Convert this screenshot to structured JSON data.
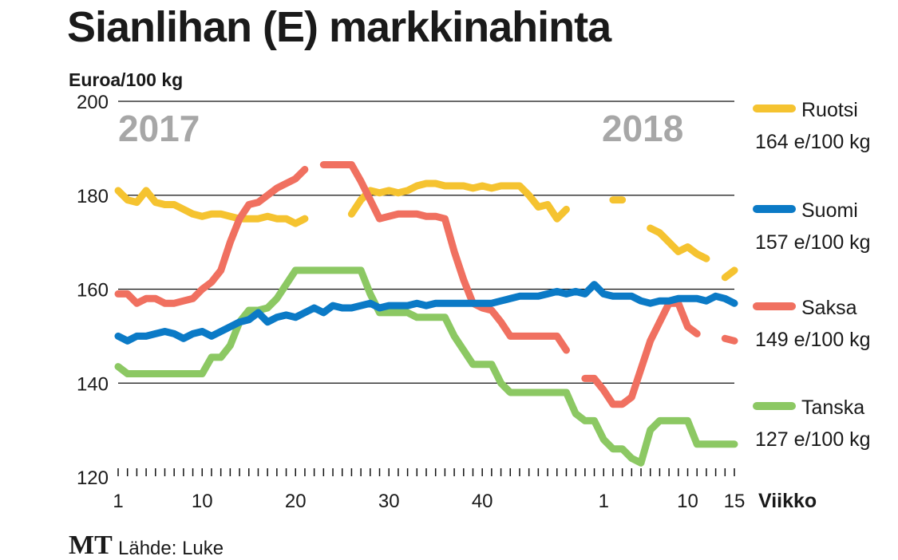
{
  "chart_data": {
    "type": "line",
    "title": "Sianlihan (E) markkinahinta",
    "ylabel": "Euroa/100 kg",
    "xlabel": "Viikko",
    "ylim": [
      120,
      200
    ],
    "yticks": [
      120,
      140,
      160,
      180,
      200
    ],
    "grid": true,
    "legend_placement": "right",
    "year_labels": [
      "2017",
      "2018"
    ],
    "x_index_range": [
      1,
      67
    ],
    "x_ticks": [
      {
        "index": 1,
        "label": "1"
      },
      {
        "index": 10,
        "label": "10"
      },
      {
        "index": 20,
        "label": "20"
      },
      {
        "index": 30,
        "label": "30"
      },
      {
        "index": 40,
        "label": "40"
      },
      {
        "index": 53,
        "label": "1"
      },
      {
        "index": 62,
        "label": "10"
      },
      {
        "index": 67,
        "label": "15"
      }
    ],
    "series": [
      {
        "name": "Ruotsi",
        "current": "164 e/100 kg",
        "color": "#f5c330",
        "points": [
          [
            1,
            181
          ],
          [
            2,
            179
          ],
          [
            3,
            178.5
          ],
          [
            4,
            181
          ],
          [
            5,
            178.5
          ],
          [
            6,
            178
          ],
          [
            7,
            178
          ],
          [
            8,
            177
          ],
          [
            9,
            176
          ],
          [
            10,
            175.5
          ],
          [
            11,
            176
          ],
          [
            12,
            176
          ],
          [
            13,
            175.5
          ],
          [
            14,
            175
          ],
          [
            15,
            175
          ],
          [
            16,
            175
          ],
          [
            17,
            175.5
          ],
          [
            18,
            175
          ],
          [
            19,
            175
          ],
          [
            20,
            174
          ],
          [
            21,
            175
          ],
          null,
          [
            26,
            176
          ],
          [
            27,
            179
          ],
          [
            28,
            181
          ],
          [
            29,
            180.5
          ],
          [
            30,
            181
          ],
          [
            31,
            180.5
          ],
          [
            32,
            181
          ],
          [
            33,
            182
          ],
          [
            34,
            182.5
          ],
          [
            35,
            182.5
          ],
          [
            36,
            182
          ],
          [
            37,
            182
          ],
          [
            38,
            182
          ],
          [
            39,
            181.5
          ],
          [
            40,
            182
          ],
          [
            41,
            181.5
          ],
          [
            42,
            182
          ],
          [
            43,
            182
          ],
          [
            44,
            182
          ],
          [
            45,
            180
          ],
          [
            46,
            177.5
          ],
          [
            47,
            178
          ],
          [
            48,
            175
          ],
          [
            49,
            177
          ],
          null,
          [
            54,
            179
          ],
          [
            55,
            179
          ],
          null,
          [
            58,
            173
          ],
          [
            59,
            172
          ],
          [
            60,
            170
          ],
          [
            61,
            168
          ],
          [
            62,
            169
          ],
          [
            63,
            167.5
          ],
          [
            64,
            166.5
          ],
          null,
          [
            66,
            162.5
          ],
          [
            67,
            164
          ]
        ]
      },
      {
        "name": "Suomi",
        "current": "157 e/100 kg",
        "color": "#0b7ac6",
        "points": [
          [
            1,
            150
          ],
          [
            2,
            149
          ],
          [
            3,
            150
          ],
          [
            4,
            150
          ],
          [
            5,
            150.5
          ],
          [
            6,
            151
          ],
          [
            7,
            150.5
          ],
          [
            8,
            149.5
          ],
          [
            9,
            150.5
          ],
          [
            10,
            151
          ],
          [
            11,
            150
          ],
          [
            12,
            151
          ],
          [
            13,
            152
          ],
          [
            14,
            153
          ],
          [
            15,
            153.5
          ],
          [
            16,
            155
          ],
          [
            17,
            153
          ],
          [
            18,
            154
          ],
          [
            19,
            154.5
          ],
          [
            20,
            154
          ],
          [
            21,
            155
          ],
          [
            22,
            156
          ],
          [
            23,
            155
          ],
          [
            24,
            156.5
          ],
          [
            25,
            156
          ],
          [
            26,
            156
          ],
          [
            27,
            156.5
          ],
          [
            28,
            157
          ],
          [
            29,
            156
          ],
          [
            30,
            156.5
          ],
          [
            31,
            156.5
          ],
          [
            32,
            156.5
          ],
          [
            33,
            157
          ],
          [
            34,
            156.5
          ],
          [
            35,
            157
          ],
          [
            36,
            157
          ],
          [
            37,
            157
          ],
          [
            38,
            157
          ],
          [
            39,
            157
          ],
          [
            40,
            157
          ],
          [
            41,
            157
          ],
          [
            42,
            157.5
          ],
          [
            43,
            158
          ],
          [
            44,
            158.5
          ],
          [
            45,
            158.5
          ],
          [
            46,
            158.5
          ],
          [
            47,
            159
          ],
          [
            48,
            159.5
          ],
          [
            49,
            159
          ],
          [
            50,
            159.5
          ],
          [
            51,
            159
          ],
          [
            52,
            161
          ],
          [
            53,
            159
          ],
          [
            54,
            158.5
          ],
          [
            55,
            158.5
          ],
          [
            56,
            158.5
          ],
          [
            57,
            157.5
          ],
          [
            58,
            157
          ],
          [
            59,
            157.5
          ],
          [
            60,
            157.5
          ],
          [
            61,
            158
          ],
          [
            62,
            158
          ],
          [
            63,
            158
          ],
          [
            64,
            157.5
          ],
          [
            65,
            158.5
          ],
          [
            66,
            158
          ],
          [
            67,
            157
          ]
        ]
      },
      {
        "name": "Saksa",
        "current": "149 e/100 kg",
        "color": "#f07060",
        "points": [
          [
            1,
            159
          ],
          [
            2,
            159
          ],
          [
            3,
            157
          ],
          [
            4,
            158
          ],
          [
            5,
            158
          ],
          [
            6,
            157
          ],
          [
            7,
            157
          ],
          [
            8,
            157.5
          ],
          [
            9,
            158
          ],
          [
            10,
            160
          ],
          [
            11,
            161.5
          ],
          [
            12,
            164
          ],
          [
            13,
            170
          ],
          [
            14,
            175
          ],
          [
            15,
            178
          ],
          [
            16,
            178.5
          ],
          [
            17,
            180
          ],
          [
            18,
            181.5
          ],
          [
            19,
            182.5
          ],
          [
            20,
            183.5
          ],
          [
            21,
            185.5
          ],
          null,
          [
            23,
            186.5
          ],
          [
            24,
            186.5
          ],
          [
            25,
            186.5
          ],
          [
            26,
            186.5
          ],
          [
            27,
            183
          ],
          [
            28,
            179
          ],
          [
            29,
            175
          ],
          [
            30,
            175.5
          ],
          [
            31,
            176
          ],
          [
            32,
            176
          ],
          [
            33,
            176
          ],
          [
            34,
            175.5
          ],
          [
            35,
            175.5
          ],
          [
            36,
            175
          ],
          [
            37,
            168
          ],
          [
            38,
            162
          ],
          [
            39,
            157
          ],
          [
            40,
            156
          ],
          [
            41,
            155.5
          ],
          [
            42,
            153
          ],
          [
            43,
            150
          ],
          [
            44,
            150
          ],
          [
            45,
            150
          ],
          [
            46,
            150
          ],
          [
            47,
            150
          ],
          [
            48,
            150
          ],
          [
            49,
            147
          ],
          null,
          [
            51,
            141
          ],
          [
            52,
            141
          ],
          [
            53,
            138.5
          ],
          [
            54,
            135.5
          ],
          [
            55,
            135.5
          ],
          [
            56,
            137
          ],
          [
            57,
            143
          ],
          [
            58,
            149
          ],
          [
            59,
            153
          ],
          [
            60,
            157
          ],
          [
            61,
            157
          ],
          [
            62,
            152
          ],
          [
            63,
            150.5
          ],
          null,
          [
            66,
            149.5
          ],
          [
            67,
            149
          ]
        ]
      },
      {
        "name": "Tanska",
        "current": "127 e/100 kg",
        "color": "#8cc863",
        "points": [
          [
            1,
            143.5
          ],
          [
            2,
            142
          ],
          [
            3,
            142
          ],
          [
            4,
            142
          ],
          [
            5,
            142
          ],
          [
            6,
            142
          ],
          [
            7,
            142
          ],
          [
            8,
            142
          ],
          [
            9,
            142
          ],
          [
            10,
            142
          ],
          [
            11,
            145.5
          ],
          [
            12,
            145.5
          ],
          [
            13,
            148
          ],
          [
            14,
            153
          ],
          [
            15,
            155.5
          ],
          [
            16,
            155.5
          ],
          [
            17,
            156
          ],
          [
            18,
            158
          ],
          [
            19,
            161
          ],
          [
            20,
            164
          ],
          [
            21,
            164
          ],
          [
            22,
            164
          ],
          [
            23,
            164
          ],
          [
            24,
            164
          ],
          [
            25,
            164
          ],
          [
            26,
            164
          ],
          [
            27,
            164
          ],
          [
            28,
            159
          ],
          [
            29,
            155
          ],
          [
            30,
            155
          ],
          [
            31,
            155
          ],
          [
            32,
            155
          ],
          [
            33,
            154
          ],
          [
            34,
            154
          ],
          [
            35,
            154
          ],
          [
            36,
            154
          ],
          [
            37,
            150
          ],
          [
            38,
            147
          ],
          [
            39,
            144
          ],
          [
            40,
            144
          ],
          [
            41,
            144
          ],
          [
            42,
            140
          ],
          [
            43,
            138
          ],
          [
            44,
            138
          ],
          [
            45,
            138
          ],
          [
            46,
            138
          ],
          [
            47,
            138
          ],
          [
            48,
            138
          ],
          [
            49,
            138
          ],
          [
            50,
            133.5
          ],
          [
            51,
            132
          ],
          [
            52,
            132
          ],
          [
            53,
            128
          ],
          [
            54,
            126
          ],
          [
            55,
            126
          ],
          [
            56,
            124
          ],
          [
            57,
            123
          ],
          [
            58,
            130
          ],
          [
            59,
            132
          ],
          [
            60,
            132
          ],
          [
            61,
            132
          ],
          [
            62,
            132
          ],
          [
            63,
            127
          ],
          [
            64,
            127
          ],
          [
            65,
            127
          ],
          [
            66,
            127
          ],
          [
            67,
            127
          ]
        ]
      }
    ]
  },
  "footer": {
    "logo": "MT",
    "source": "Lähde: Luke"
  }
}
